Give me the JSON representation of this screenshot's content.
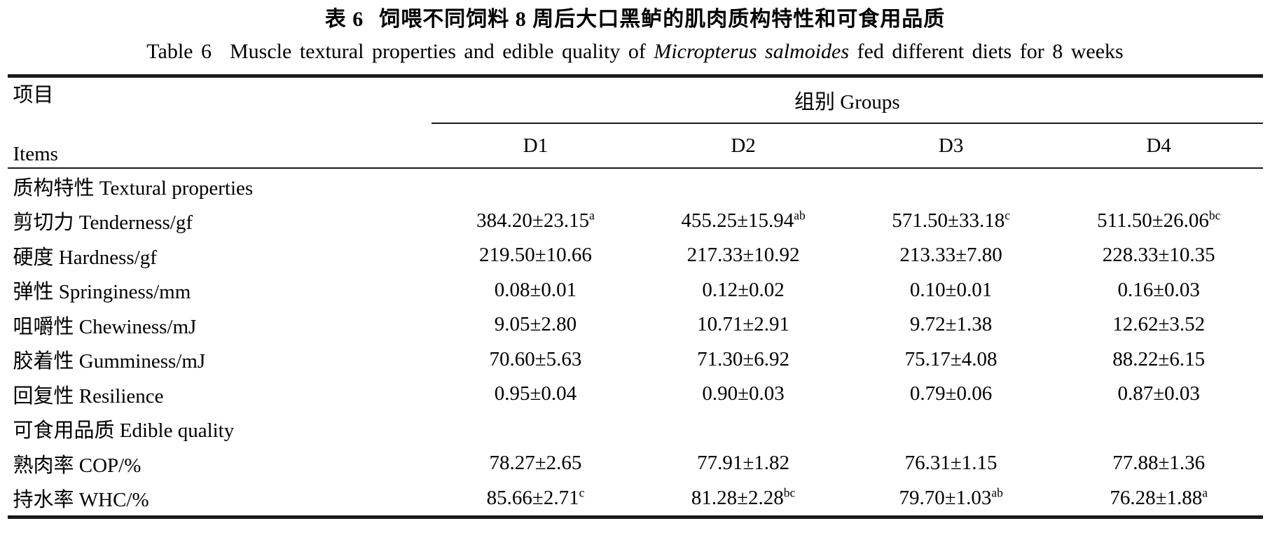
{
  "title": {
    "zh_label": "表 6",
    "zh_text": "饲喂不同饲料 8 周后大口黑鲈的肌肉质构特性和可食用品质",
    "en_label": "Table 6",
    "en_pre": "Muscle textural properties and edible quality of ",
    "en_species": "Micropterus salmoides",
    "en_post": " fed different diets for 8 weeks"
  },
  "table": {
    "items_header_zh": "项目",
    "items_header_en": "Items",
    "groups_header": "组别 Groups",
    "columns": [
      "D1",
      "D2",
      "D3",
      "D4"
    ],
    "rows": [
      {
        "type": "section",
        "label": "质构特性 Textural properties"
      },
      {
        "type": "data",
        "label": "剪切力 Tenderness/gf",
        "values": [
          {
            "text": "384.20±23.15",
            "sup": "a"
          },
          {
            "text": "455.25±15.94",
            "sup": "ab"
          },
          {
            "text": "571.50±33.18",
            "sup": "c"
          },
          {
            "text": "511.50±26.06",
            "sup": "bc"
          }
        ]
      },
      {
        "type": "data",
        "label": "硬度 Hardness/gf",
        "values": [
          {
            "text": "219.50±10.66",
            "sup": ""
          },
          {
            "text": "217.33±10.92",
            "sup": ""
          },
          {
            "text": "213.33±7.80",
            "sup": ""
          },
          {
            "text": "228.33±10.35",
            "sup": ""
          }
        ]
      },
      {
        "type": "data",
        "label": "弹性 Springiness/mm",
        "values": [
          {
            "text": "0.08±0.01",
            "sup": ""
          },
          {
            "text": "0.12±0.02",
            "sup": ""
          },
          {
            "text": "0.10±0.01",
            "sup": ""
          },
          {
            "text": "0.16±0.03",
            "sup": ""
          }
        ]
      },
      {
        "type": "data",
        "label": "咀嚼性 Chewiness/mJ",
        "values": [
          {
            "text": "9.05±2.80",
            "sup": ""
          },
          {
            "text": "10.71±2.91",
            "sup": ""
          },
          {
            "text": "9.72±1.38",
            "sup": ""
          },
          {
            "text": "12.62±3.52",
            "sup": ""
          }
        ]
      },
      {
        "type": "data",
        "label": "胶着性 Gumminess/mJ",
        "values": [
          {
            "text": "70.60±5.63",
            "sup": ""
          },
          {
            "text": "71.30±6.92",
            "sup": ""
          },
          {
            "text": "75.17±4.08",
            "sup": ""
          },
          {
            "text": "88.22±6.15",
            "sup": ""
          }
        ]
      },
      {
        "type": "data",
        "label": "回复性 Resilience",
        "values": [
          {
            "text": "0.95±0.04",
            "sup": ""
          },
          {
            "text": "0.90±0.03",
            "sup": ""
          },
          {
            "text": "0.79±0.06",
            "sup": ""
          },
          {
            "text": "0.87±0.03",
            "sup": ""
          }
        ]
      },
      {
        "type": "section",
        "label": "可食用品质 Edible quality"
      },
      {
        "type": "data",
        "label": "熟肉率 COP/%",
        "values": [
          {
            "text": "78.27±2.65",
            "sup": ""
          },
          {
            "text": "77.91±1.82",
            "sup": ""
          },
          {
            "text": "76.31±1.15",
            "sup": ""
          },
          {
            "text": "77.88±1.36",
            "sup": ""
          }
        ]
      },
      {
        "type": "data",
        "label": "持水率 WHC/%",
        "values": [
          {
            "text": "85.66±2.71",
            "sup": "c"
          },
          {
            "text": "81.28±2.28",
            "sup": "bc"
          },
          {
            "text": "79.70±1.03",
            "sup": "ab"
          },
          {
            "text": "76.28±1.88",
            "sup": "a"
          }
        ]
      }
    ]
  }
}
